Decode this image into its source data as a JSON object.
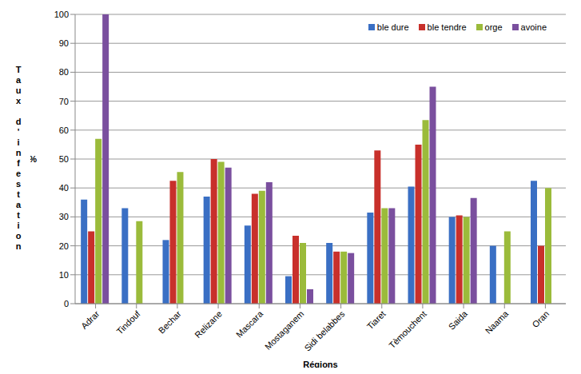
{
  "chart_data": {
    "type": "bar",
    "x_label": "Régions",
    "y_label": "Taux d'infestation",
    "y_label_unit": "%",
    "categories": [
      "Adrar",
      "Tindouf",
      "Bechar",
      "Relizane",
      "Mascara",
      "Mostaganem",
      "Sidi belabbes",
      "Tiaret",
      "Tèmouchent",
      "Saida",
      "Naama",
      "Oran"
    ],
    "series": [
      {
        "name": "ble dure",
        "color": "#3a6fc4",
        "values": [
          36,
          33,
          22,
          37,
          27,
          9.5,
          21,
          31.5,
          40.5,
          30,
          20,
          42.5
        ]
      },
      {
        "name": "ble tendre",
        "color": "#c8302b",
        "values": [
          25,
          0,
          42.5,
          50,
          38,
          23.5,
          18,
          53,
          55,
          30.5,
          0,
          20
        ]
      },
      {
        "name": "orge",
        "color": "#9bbb3b",
        "values": [
          57,
          28.5,
          45.5,
          49,
          39,
          21,
          18,
          33,
          63.5,
          30,
          25,
          40
        ]
      },
      {
        "name": "avoine",
        "color": "#7a4f9e",
        "values": [
          100,
          0,
          0,
          47,
          42,
          5,
          17.5,
          33,
          75,
          36.5,
          0,
          0
        ]
      }
    ],
    "ylim": [
      0,
      100
    ],
    "yticks": [
      0,
      10,
      20,
      30,
      40,
      50,
      60,
      70,
      80,
      90,
      100
    ],
    "grid": true,
    "legend": "upper right"
  }
}
